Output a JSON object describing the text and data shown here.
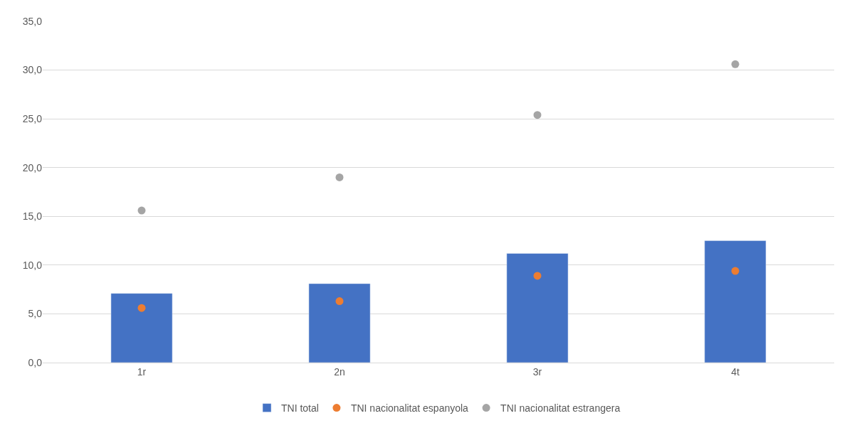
{
  "chart_data": {
    "type": "bar",
    "categories": [
      "1r",
      "2n",
      "3r",
      "4t"
    ],
    "series": [
      {
        "name": "TNI total",
        "color": "#4472c4",
        "values": [
          7.1,
          8.1,
          11.2,
          12.5
        ]
      },
      {
        "name": "TNI nacionalitat espanyola",
        "type": "scatter",
        "color": "#ed7d31",
        "values": [
          5.6,
          6.3,
          8.9,
          9.4
        ]
      },
      {
        "name": "TNI nacionalitat estrangera",
        "type": "scatter",
        "color": "#a5a5a5",
        "values": [
          15.6,
          19.0,
          25.4,
          30.6
        ]
      }
    ],
    "ylim": [
      0,
      35
    ],
    "yticks": [
      {
        "value": 0,
        "label": "0,0"
      },
      {
        "value": 5,
        "label": "5,0"
      },
      {
        "value": 10,
        "label": "10,0"
      },
      {
        "value": 15,
        "label": "15,0"
      },
      {
        "value": 20,
        "label": "20,0"
      },
      {
        "value": 25,
        "label": "25,0"
      },
      {
        "value": 30,
        "label": "30,0"
      },
      {
        "value": 35,
        "label": "35,0"
      }
    ],
    "grid": "y",
    "legend": "bottom",
    "marker": "circle"
  }
}
